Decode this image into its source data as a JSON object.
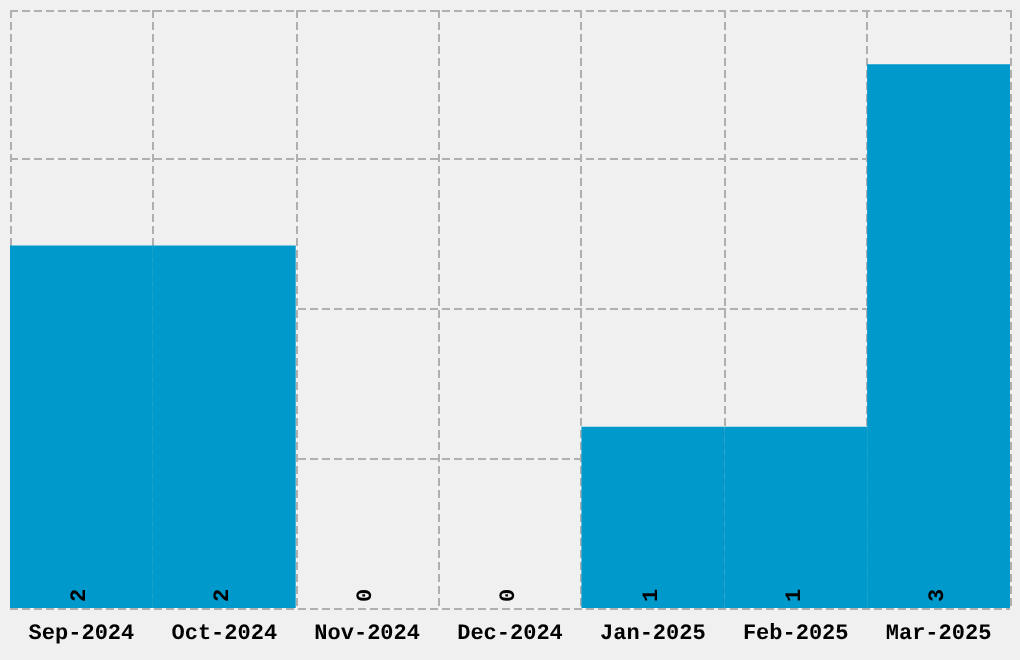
{
  "chart_data": {
    "type": "bar",
    "categories": [
      "Sep-2024",
      "Oct-2024",
      "Nov-2024",
      "Dec-2024",
      "Jan-2025",
      "Feb-2025",
      "Mar-2025"
    ],
    "values": [
      2,
      2,
      0,
      0,
      1,
      1,
      3
    ],
    "color": "#0099cc",
    "data_labels": true,
    "grid": true,
    "ylim": [
      0,
      3.3
    ],
    "yticks": [
      {
        "value": 0,
        "label": null
      },
      {
        "value": 0.825,
        "label": null
      },
      {
        "value": 1.65,
        "label": null
      },
      {
        "value": 2.475,
        "label": null
      },
      {
        "value": 3.3,
        "label": null
      }
    ],
    "tick_labels": "x"
  }
}
